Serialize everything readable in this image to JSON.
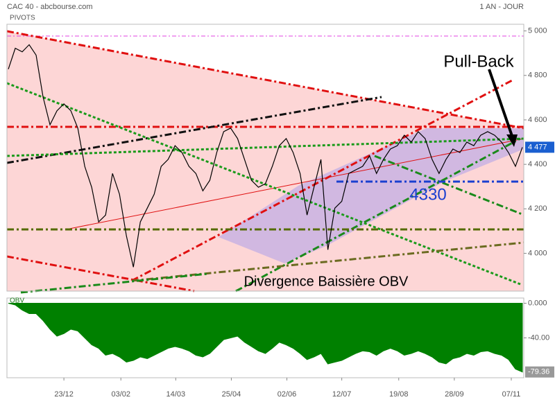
{
  "chart_data": [
    {
      "type": "line",
      "title": "CAC 40 - abcbourse.com",
      "subtitle": "1 AN - JOUR",
      "label": "PIVOTS",
      "color": "#000000",
      "x": [
        0,
        1,
        2,
        3,
        4,
        5,
        6,
        7,
        8,
        9,
        10,
        11,
        12,
        13,
        14,
        15,
        16,
        17,
        18,
        19,
        20,
        21,
        22,
        23,
        24,
        25,
        26,
        27,
        28,
        29,
        30,
        31,
        32,
        33,
        34,
        35,
        36,
        37,
        38,
        39,
        40,
        41,
        42,
        43,
        44,
        45,
        46,
        47,
        48,
        49,
        50,
        51,
        52,
        53,
        54,
        55,
        56,
        57,
        58,
        59,
        60,
        61,
        62,
        63,
        64,
        65,
        66,
        67,
        68,
        69,
        70,
        71,
        72,
        73,
        74
      ],
      "values": [
        4828,
        4922,
        4906,
        4938,
        4891,
        4703,
        4578,
        4641,
        4672,
        4641,
        4563,
        4391,
        4297,
        4141,
        4172,
        4359,
        4266,
        4078,
        3938,
        4141,
        4203,
        4266,
        4391,
        4422,
        4484,
        4453,
        4391,
        4359,
        4281,
        4328,
        4453,
        4547,
        4563,
        4516,
        4422,
        4328,
        4297,
        4313,
        4391,
        4484,
        4516,
        4453,
        4359,
        4172,
        4297,
        4422,
        4016,
        4203,
        4234,
        4359,
        4375,
        4391,
        4438,
        4359,
        4422,
        4469,
        4484,
        4531,
        4500,
        4547,
        4516,
        4422,
        4359,
        4422,
        4469,
        4453,
        4500,
        4484,
        4531,
        4547,
        4531,
        4500,
        4453,
        4391,
        4477
      ],
      "xlim": [
        0,
        74
      ],
      "ylim": [
        3830,
        5030
      ],
      "yticks": [
        {
          "value": 4000,
          "label": "4 000"
        },
        {
          "value": 4200,
          "label": "4 200"
        },
        {
          "value": 4400,
          "label": "4 400"
        },
        {
          "value": 4600,
          "label": "4 600"
        },
        {
          "value": 4800,
          "label": "4 800"
        },
        {
          "value": 5000,
          "label": "5 000"
        }
      ],
      "last_value": {
        "value": 4477,
        "label": "4 477"
      },
      "annotations": [
        "Pull-Back",
        "4330",
        "Divergence Baissière OBV"
      ]
    },
    {
      "type": "area",
      "title": "OBV",
      "color": "#008000",
      "x": [
        0,
        1,
        2,
        3,
        4,
        5,
        6,
        7,
        8,
        9,
        10,
        11,
        12,
        13,
        14,
        15,
        16,
        17,
        18,
        19,
        20,
        21,
        22,
        23,
        24,
        25,
        26,
        27,
        28,
        29,
        30,
        31,
        32,
        33,
        34,
        35,
        36,
        37,
        38,
        39,
        40,
        41,
        42,
        43,
        44,
        45,
        46,
        47,
        48,
        49,
        50,
        51,
        52,
        53,
        54,
        55,
        56,
        57,
        58,
        59,
        60,
        61,
        62,
        63,
        64,
        65,
        66,
        67,
        68,
        69,
        70,
        71,
        72,
        73,
        74
      ],
      "values": [
        0,
        -2,
        -8,
        -12,
        -12,
        -20,
        -30,
        -38,
        -35,
        -30,
        -32,
        -40,
        -48,
        -52,
        -60,
        -58,
        -62,
        -68,
        -66,
        -62,
        -64,
        -60,
        -56,
        -52,
        -50,
        -52,
        -55,
        -60,
        -62,
        -58,
        -50,
        -42,
        -40,
        -38,
        -45,
        -50,
        -55,
        -58,
        -52,
        -45,
        -48,
        -52,
        -58,
        -65,
        -62,
        -58,
        -70,
        -68,
        -66,
        -62,
        -58,
        -55,
        -56,
        -60,
        -55,
        -52,
        -55,
        -60,
        -58,
        -55,
        -58,
        -62,
        -68,
        -70,
        -64,
        -62,
        -58,
        -60,
        -56,
        -55,
        -58,
        -60,
        -65,
        -76,
        -79.36
      ],
      "xlim": [
        0,
        74
      ],
      "ylim": [
        -86,
        6
      ],
      "yticks": [
        {
          "value": 0,
          "label": "0.000"
        },
        {
          "value": -40,
          "label": "-40.00"
        }
      ],
      "last_value": {
        "value": -79.36,
        "label": "-79.36"
      },
      "xticks": [
        {
          "value": 8,
          "label": "23/12"
        },
        {
          "value": 16.2,
          "label": "03/02"
        },
        {
          "value": 24.1,
          "label": "14/03"
        },
        {
          "value": 32.1,
          "label": "25/04"
        },
        {
          "value": 40.1,
          "label": "02/06"
        },
        {
          "value": 48,
          "label": "12/07"
        },
        {
          "value": 56.2,
          "label": "19/08"
        },
        {
          "value": 64.2,
          "label": "28/09"
        },
        {
          "value": 72.4,
          "label": "07/11"
        }
      ]
    }
  ]
}
